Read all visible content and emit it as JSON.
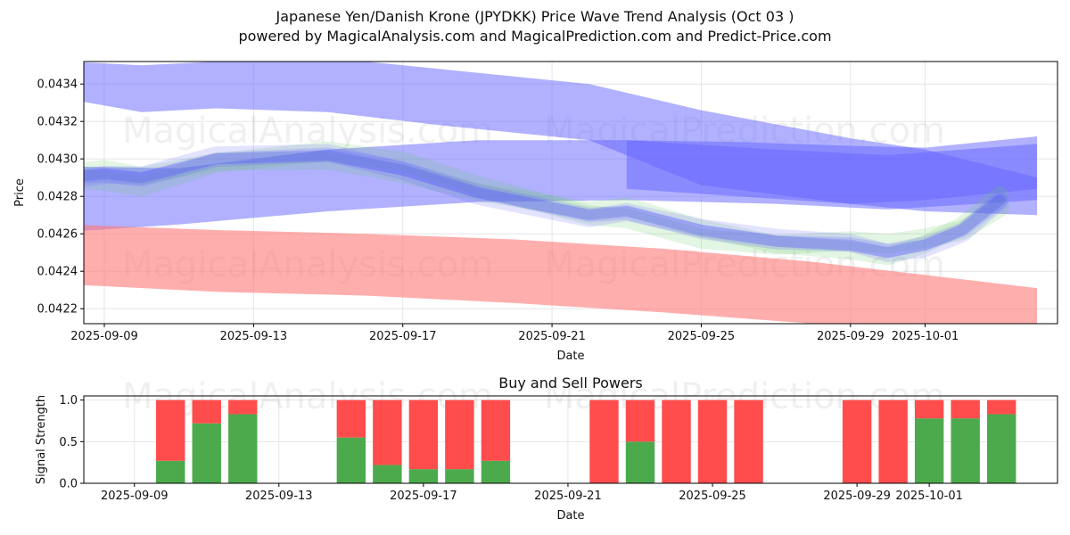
{
  "header": {
    "title_line1": "Japanese Yen/Danish Krone (JPYDKK) Price Wave Trend Analysis (Oct 03 )",
    "title_line2": "powered by MagicalAnalysis.com and MagicalPrediction.com and Predict-Price.com"
  },
  "watermarks": [
    "MagicalAnalysis.com",
    "MagicalPrediction.com"
  ],
  "chart_data": [
    {
      "type": "area",
      "xlabel": "Date",
      "ylabel": "Price",
      "ylim": [
        0.04212,
        0.04352
      ],
      "xlim": [
        "2025-09-08",
        "2025-10-04"
      ],
      "x_ticks": [
        "2025-09-09",
        "2025-09-13",
        "2025-09-17",
        "2025-09-21",
        "2025-09-25",
        "2025-09-29",
        "2025-10-01"
      ],
      "y_ticks": [
        "0.0422",
        "0.0424",
        "0.0426",
        "0.0428",
        "0.0430",
        "0.0432",
        "0.0434"
      ],
      "grid": true,
      "colors": {
        "blue": "#6464ff",
        "red": "#ff7878",
        "green": "#64c864"
      },
      "bands": [
        {
          "color": "blue",
          "x": [
            "2025-09-08",
            "2025-09-10",
            "2025-09-12",
            "2025-09-15",
            "2025-09-18",
            "2025-09-22",
            "2025-09-25",
            "2025-09-29",
            "2025-10-01",
            "2025-10-04"
          ],
          "upper": [
            0.04352,
            0.0435,
            0.04352,
            0.04354,
            0.04348,
            0.0434,
            0.04326,
            0.04311,
            0.04305,
            0.0429
          ],
          "lower": [
            0.04332,
            0.04325,
            0.04327,
            0.04325,
            0.04318,
            0.0431,
            0.04286,
            0.04276,
            0.04272,
            0.0427
          ]
        },
        {
          "color": "blue",
          "x": [
            "2025-09-08",
            "2025-09-11",
            "2025-09-15",
            "2025-09-19",
            "2025-09-23",
            "2025-09-27",
            "2025-09-30",
            "2025-10-04"
          ],
          "upper": [
            0.04296,
            0.04295,
            0.04305,
            0.0431,
            0.0431,
            0.04305,
            0.04302,
            0.04308
          ],
          "lower": [
            0.04261,
            0.04265,
            0.04272,
            0.04277,
            0.04278,
            0.04276,
            0.04273,
            0.04278
          ]
        },
        {
          "color": "blue",
          "x": [
            "2025-09-23",
            "2025-09-26",
            "2025-09-29",
            "2025-10-01",
            "2025-10-04"
          ],
          "upper": [
            0.0431,
            0.04309,
            0.04307,
            0.04306,
            0.04312
          ],
          "lower": [
            0.04284,
            0.0428,
            0.04276,
            0.04278,
            0.04284
          ]
        },
        {
          "color": "red",
          "x": [
            "2025-09-08",
            "2025-09-12",
            "2025-09-16",
            "2025-09-20",
            "2025-09-24",
            "2025-09-28",
            "2025-10-01",
            "2025-10-04"
          ],
          "upper": [
            0.04265,
            0.04262,
            0.0426,
            0.04257,
            0.04252,
            0.04245,
            0.04238,
            0.04231
          ],
          "lower": [
            0.04233,
            0.04229,
            0.04227,
            0.04223,
            0.04218,
            0.04212,
            0.0421,
            0.04208
          ]
        }
      ],
      "waves": [
        {
          "x": [
            "2025-09-08",
            "2025-09-09",
            "2025-09-10",
            "2025-09-12",
            "2025-09-15",
            "2025-09-17",
            "2025-09-19",
            "2025-09-22",
            "2025-09-23",
            "2025-09-25",
            "2025-09-27",
            "2025-09-29",
            "2025-09-30",
            "2025-10-01",
            "2025-10-02",
            "2025-10-03"
          ],
          "y": [
            0.0429,
            0.04292,
            0.0429,
            0.043,
            0.04302,
            0.04294,
            0.04282,
            0.0427,
            0.04272,
            0.04262,
            0.04256,
            0.04254,
            0.0425,
            0.04254,
            0.04262,
            0.04278
          ]
        }
      ]
    },
    {
      "type": "bar",
      "title": "Buy and Sell Powers",
      "xlabel": "Date",
      "ylabel": "Signal Strength",
      "ylim": [
        0,
        1.05
      ],
      "xlim": [
        "2025-09-08",
        "2025-10-04"
      ],
      "x_ticks": [
        "2025-09-09",
        "2025-09-13",
        "2025-09-17",
        "2025-09-21",
        "2025-09-25",
        "2025-09-29",
        "2025-10-01"
      ],
      "y_ticks": [
        "0.0",
        "0.5",
        "1.0"
      ],
      "colors": {
        "buy": "#4caa4c",
        "sell": "#ff4c4c"
      },
      "categories": [
        "2025-09-10",
        "2025-09-11",
        "2025-09-12",
        "2025-09-15",
        "2025-09-16",
        "2025-09-17",
        "2025-09-18",
        "2025-09-19",
        "2025-09-22",
        "2025-09-23",
        "2025-09-24",
        "2025-09-25",
        "2025-09-26",
        "2025-09-29",
        "2025-09-30",
        "2025-10-01",
        "2025-10-02",
        "2025-10-03"
      ],
      "series": [
        {
          "values": [
            0.27,
            0.72,
            0.83,
            0.55,
            0.22,
            0.17,
            0.17,
            0.27,
            0.0,
            0.5,
            0.0,
            0.0,
            0.0,
            0.0,
            0.0,
            0.78,
            0.78,
            0.83
          ]
        },
        {
          "values": [
            0.73,
            0.28,
            0.17,
            0.45,
            0.78,
            0.83,
            0.83,
            0.73,
            1.0,
            0.5,
            1.0,
            1.0,
            1.0,
            1.0,
            1.0,
            0.22,
            0.22,
            0.17
          ]
        }
      ]
    }
  ]
}
